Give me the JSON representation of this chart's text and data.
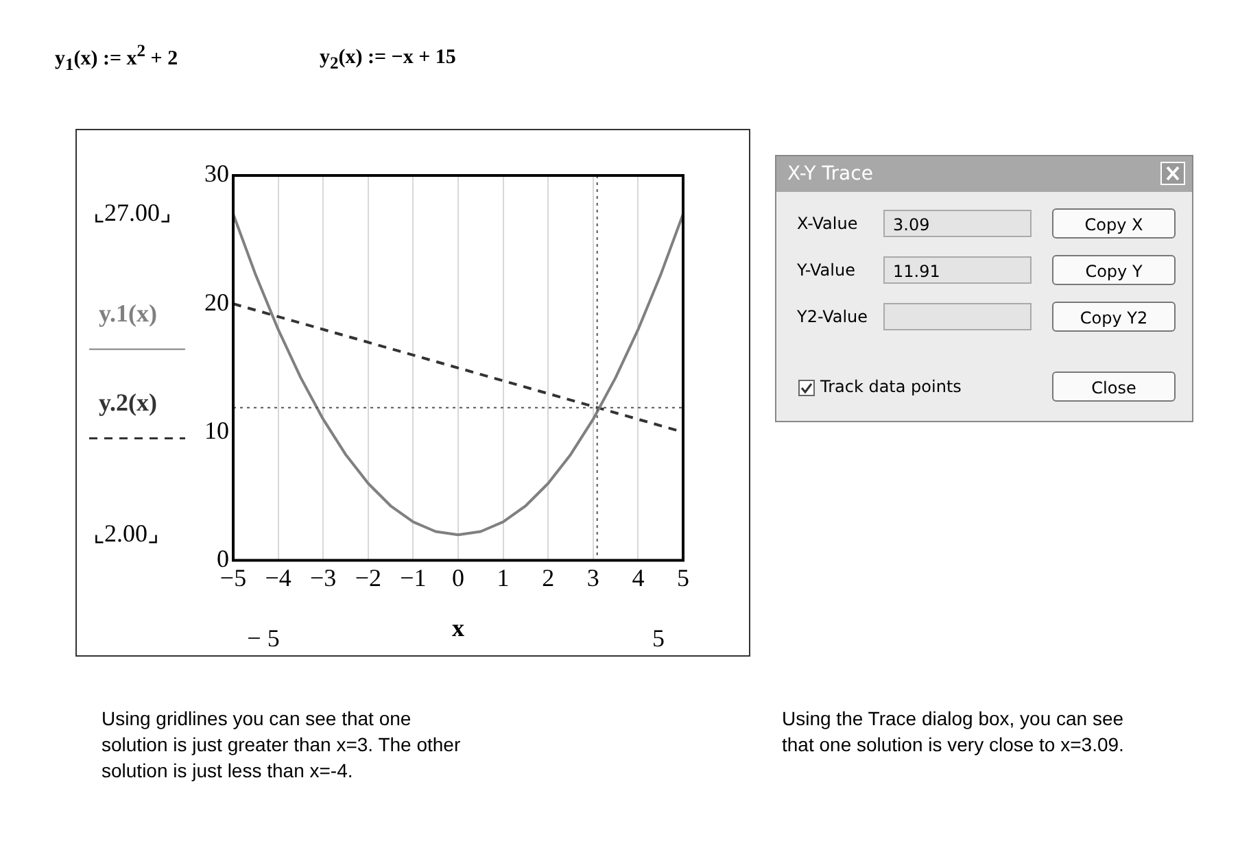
{
  "chart_data": {
    "type": "line",
    "xlabel": "x",
    "x": [
      -5,
      -4.5,
      -4,
      -3.5,
      -3,
      -2.5,
      -2,
      -1.5,
      -1,
      -0.5,
      0,
      0.5,
      1,
      1.5,
      2,
      2.5,
      3,
      3.5,
      4,
      4.5,
      5
    ],
    "series": [
      {
        "name": "y.1(x)",
        "color": "#808080",
        "line_style": "solid",
        "values": [
          27,
          22.25,
          18,
          14.25,
          11,
          8.25,
          6,
          4.25,
          3,
          2.25,
          2,
          2.25,
          3,
          4.25,
          6,
          8.25,
          11,
          14.25,
          18,
          22.25,
          27
        ]
      },
      {
        "name": "y.2(x)",
        "color": "#333333",
        "line_style": "dashed",
        "x": [
          -5,
          5
        ],
        "values": [
          20,
          10
        ]
      }
    ],
    "xlim": [
      -5,
      5
    ],
    "xticks": [
      {
        "value": -5,
        "label": "−5"
      },
      {
        "value": -4,
        "label": "−4"
      },
      {
        "value": -3,
        "label": "−3"
      },
      {
        "value": -2,
        "label": "−2"
      },
      {
        "value": -1,
        "label": "−1"
      },
      0,
      1,
      2,
      3,
      4,
      5
    ],
    "ylim": [
      0,
      30
    ],
    "yticks": [
      0,
      10,
      20,
      30
    ],
    "grid": "x",
    "legend": "left",
    "marker": "none",
    "ref_lines": [
      {
        "axis": "x",
        "value": 3.09,
        "line_style": "dotted",
        "color": "#555555"
      },
      {
        "axis": "y",
        "value": 11.91,
        "line_style": "dotted",
        "color": "#555555"
      }
    ],
    "annotations": [
      "y$_{1}$(x) := x$^{2}$ + 2",
      "y$_{2}$(x) := −x + 15",
      "⌞27.00⌟",
      "⌞2.00⌟",
      "− 5",
      "5",
      "X-Y Trace",
      "X-Value",
      "3.09",
      "Copy X",
      "Y-Value",
      "11.91",
      "Copy Y",
      "Y2-Value",
      "Copy Y2",
      "Track data points",
      "Close",
      "Using gridlines you can see that one solution is just greater than x=3. The other solution is just less than x=-4.",
      "Using the Trace dialog box, you can see that one solution is very close to x=3.09."
    ]
  }
}
